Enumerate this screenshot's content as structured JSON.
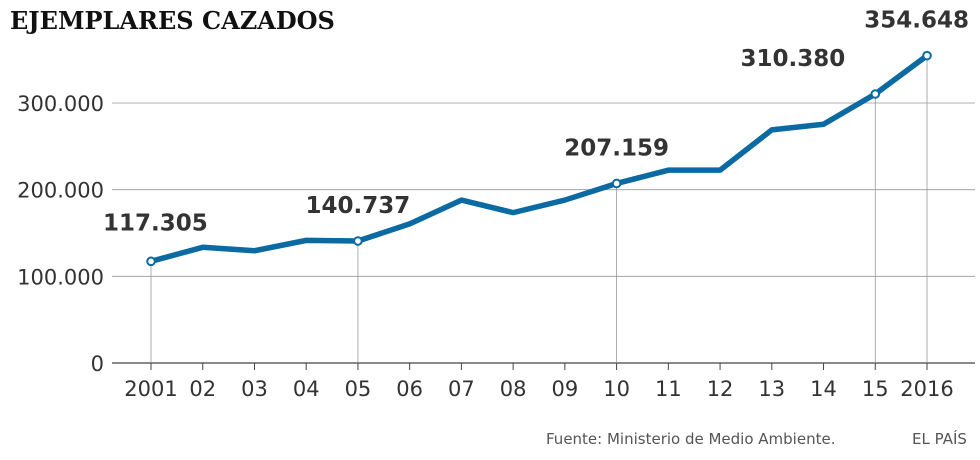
{
  "chart_data": {
    "type": "line",
    "title": "EJEMPLARES CAZADOS",
    "xlabel": "",
    "ylabel": "",
    "categories": [
      "2001",
      "02",
      "03",
      "04",
      "05",
      "06",
      "07",
      "08",
      "09",
      "10",
      "11",
      "12",
      "13",
      "14",
      "15",
      "2016"
    ],
    "series": [
      {
        "values": [
          117305,
          133500,
          129500,
          141500,
          140737,
          160500,
          188000,
          173500,
          188000,
          207159,
          222500,
          222500,
          269000,
          275500,
          310380,
          354648
        ]
      }
    ],
    "yticks": [
      0,
      100000,
      200000,
      300000
    ],
    "ytick_labels": [
      "0",
      "100.000",
      "200.000",
      "300.000"
    ],
    "ylim": [
      0,
      375000
    ],
    "grid": "horizontal",
    "highlighted": [
      {
        "index": 0,
        "label": "117.305"
      },
      {
        "index": 4,
        "label": "140.737"
      },
      {
        "index": 9,
        "label": "207.159"
      },
      {
        "index": 14,
        "label": "310.380"
      },
      {
        "index": 15,
        "label": "354.648"
      }
    ],
    "line_color": "#0a6aa1",
    "grid_color": "#999999"
  },
  "footer": {
    "source": "Fuente: Ministerio de Medio Ambiente.",
    "brand": "EL PAÍS"
  }
}
